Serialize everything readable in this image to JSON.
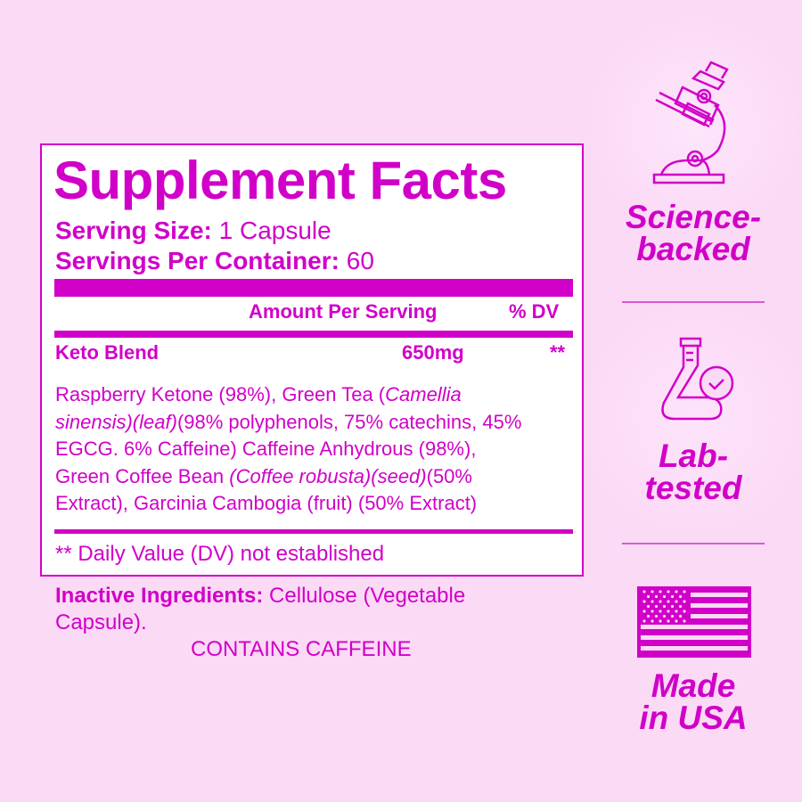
{
  "facts": {
    "title": "Supplement Facts",
    "serving_size_label": "Serving Size:",
    "serving_size_value": " 1 Capsule",
    "servings_per_container_label": "Servings Per Container:",
    "servings_per_container_value": " 60",
    "col_amount": "Amount Per Serving",
    "col_dv": "% DV",
    "blend_name": "Keto Blend",
    "blend_amount": "650mg",
    "blend_dv": "**",
    "ingredients_lines": [
      [
        {
          "t": "Raspberry Ketone (98%), Green Tea (",
          "i": false
        },
        {
          "t": "Camellia",
          "i": true
        }
      ],
      [
        {
          "t": "sinensis)(leaf)",
          "i": true
        },
        {
          "t": "(98% polyphenols, 75% catechins, 45%",
          "i": false
        }
      ],
      [
        {
          "t": "EGCG. 6% Caffeine) Caffeine Anhydrous (98%),",
          "i": false
        }
      ],
      [
        {
          "t": "Green Coffee Bean ",
          "i": false
        },
        {
          "t": "(Coffee robusta)(seed)",
          "i": true
        },
        {
          "t": "(50%",
          "i": false
        }
      ],
      [
        {
          "t": "Extract), Garcinia Cambogia (fruit) (50% Extract)",
          "i": false
        }
      ]
    ],
    "footnote": "** Daily Value (DV) not established"
  },
  "inactive": {
    "label": "Inactive Ingredients:",
    "line1": " Cellulose (Vegetable",
    "line2": "Capsule)."
  },
  "warning": "CONTAINS CAFFEINE",
  "badges": [
    {
      "icon": "microscope-icon",
      "line1": "Science-",
      "line2": "backed"
    },
    {
      "icon": "flask-check-icon",
      "line1": "Lab-",
      "line2": "tested"
    },
    {
      "icon": "us-flag-icon",
      "line1": "Made",
      "line2": "in USA"
    }
  ],
  "colors": {
    "accent": "#d100c8",
    "background": "#fbdaf6",
    "panel": "#ffffff"
  }
}
